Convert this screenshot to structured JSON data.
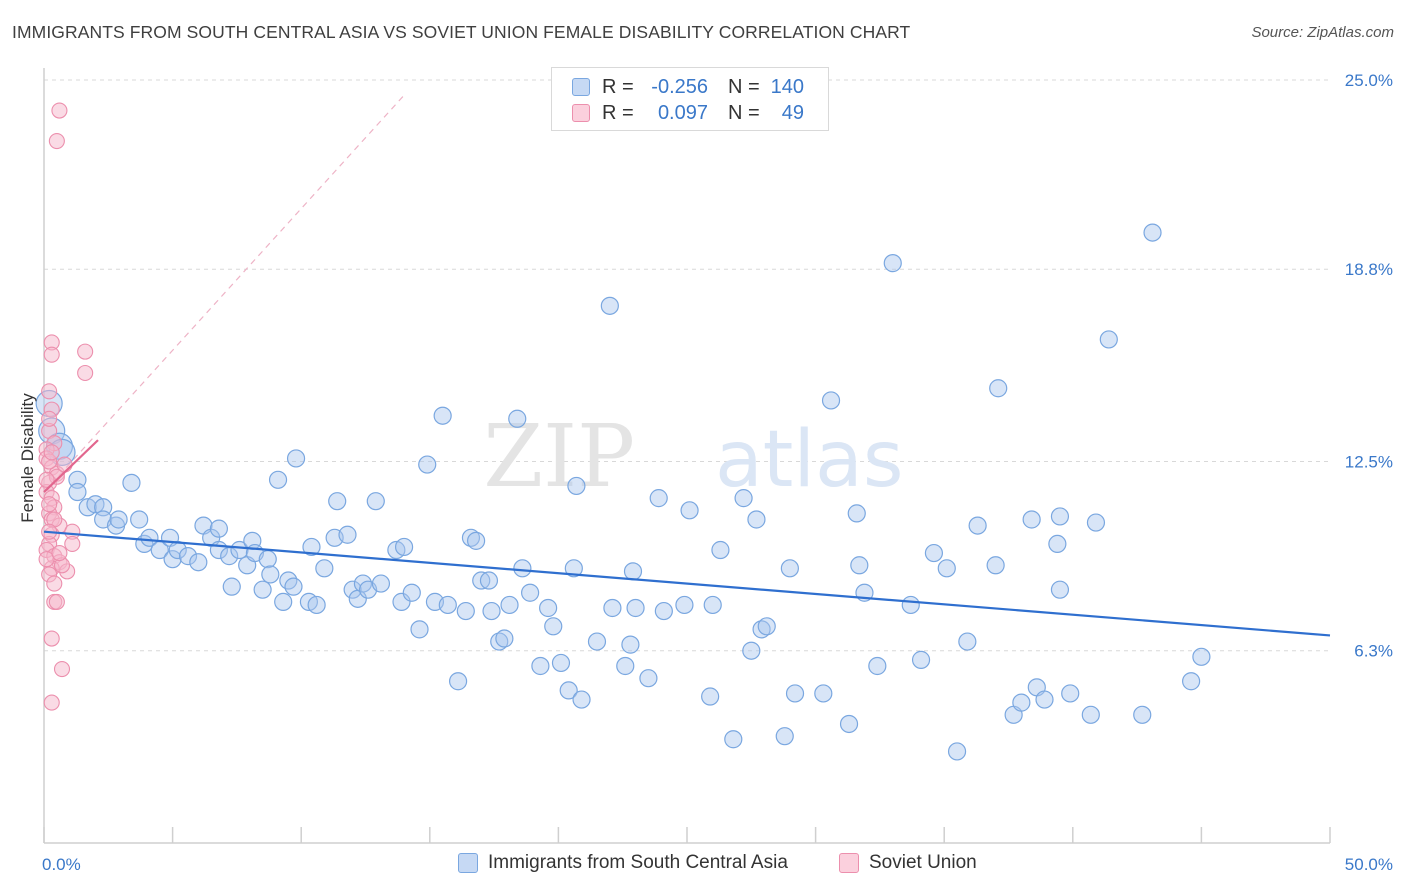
{
  "title": "IMMIGRANTS FROM SOUTH CENTRAL ASIA VS SOVIET UNION FEMALE DISABILITY CORRELATION CHART",
  "source": "Source: ZipAtlas.com",
  "watermark": {
    "zip": "ZIP",
    "atlas": "atlas"
  },
  "legend": {
    "rows": [
      {
        "r_label": "R =",
        "r_value": "-0.256",
        "n_label": "N =",
        "n_value": "140"
      },
      {
        "r_label": "R =",
        "r_value": "0.097",
        "n_label": "N =",
        "n_value": "49"
      }
    ]
  },
  "bottom_legend": [
    "Immigrants from South Central Asia",
    "Soviet Union"
  ],
  "colors": {
    "blue_fill": "#a9c6ee",
    "blue_stroke": "#7aa7e0",
    "blue_line": "#2f6fcf",
    "pink_fill": "#f6b8cb",
    "pink_stroke": "#ec8fad",
    "pink_line": "#e2668e",
    "axis_label": "#3a78c9",
    "grid": "#d8d8d8"
  },
  "chart_data": {
    "type": "scatter",
    "title": "IMMIGRANTS FROM SOUTH CENTRAL ASIA VS SOVIET UNION FEMALE DISABILITY CORRELATION CHART",
    "xlabel": "",
    "ylabel": "Female Disability",
    "xlim": [
      0,
      50
    ],
    "ylim": [
      0,
      25.0
    ],
    "x_tick_labels": [
      "0.0%",
      "50.0%"
    ],
    "y_ticks": [
      6.3,
      12.5,
      18.8,
      25.0
    ],
    "y_tick_labels": [
      "6.3%",
      "12.5%",
      "18.8%",
      "25.0%"
    ],
    "grid": true,
    "legend_position": "top-center",
    "series": [
      {
        "name": "Immigrants from South Central Asia",
        "color": "#a9c6ee",
        "r": -0.256,
        "n": 140,
        "trend": {
          "x": [
            0,
            50
          ],
          "y": [
            10.2,
            6.8
          ]
        },
        "points": [
          [
            0.2,
            14.4
          ],
          [
            0.3,
            13.5
          ],
          [
            0.6,
            13.0
          ],
          [
            0.7,
            12.8
          ],
          [
            1.3,
            11.9
          ],
          [
            1.3,
            11.5
          ],
          [
            1.7,
            11.0
          ],
          [
            2.0,
            11.1
          ],
          [
            2.3,
            11.0
          ],
          [
            2.3,
            10.6
          ],
          [
            2.8,
            10.4
          ],
          [
            2.9,
            10.6
          ],
          [
            3.4,
            11.8
          ],
          [
            3.7,
            10.6
          ],
          [
            3.9,
            9.8
          ],
          [
            4.1,
            10.0
          ],
          [
            4.5,
            9.6
          ],
          [
            4.9,
            10.0
          ],
          [
            5.0,
            9.3
          ],
          [
            5.2,
            9.6
          ],
          [
            5.6,
            9.4
          ],
          [
            6.0,
            9.2
          ],
          [
            6.2,
            10.4
          ],
          [
            6.5,
            10.0
          ],
          [
            6.8,
            10.3
          ],
          [
            6.8,
            9.6
          ],
          [
            7.2,
            9.4
          ],
          [
            7.3,
            8.4
          ],
          [
            7.6,
            9.6
          ],
          [
            7.9,
            9.1
          ],
          [
            8.1,
            9.9
          ],
          [
            8.2,
            9.5
          ],
          [
            8.5,
            8.3
          ],
          [
            8.7,
            9.3
          ],
          [
            8.8,
            8.8
          ],
          [
            9.1,
            11.9
          ],
          [
            9.3,
            7.9
          ],
          [
            9.5,
            8.6
          ],
          [
            9.7,
            8.4
          ],
          [
            9.8,
            12.6
          ],
          [
            10.3,
            7.9
          ],
          [
            10.4,
            9.7
          ],
          [
            10.6,
            7.8
          ],
          [
            10.9,
            9.0
          ],
          [
            11.3,
            10.0
          ],
          [
            11.4,
            11.2
          ],
          [
            11.8,
            10.1
          ],
          [
            12.0,
            8.3
          ],
          [
            12.2,
            8.0
          ],
          [
            12.4,
            8.5
          ],
          [
            12.6,
            8.3
          ],
          [
            12.9,
            11.2
          ],
          [
            13.1,
            8.5
          ],
          [
            13.7,
            9.6
          ],
          [
            13.9,
            7.9
          ],
          [
            14.0,
            9.7
          ],
          [
            14.3,
            8.2
          ],
          [
            14.6,
            7.0
          ],
          [
            14.9,
            12.4
          ],
          [
            15.2,
            7.9
          ],
          [
            15.5,
            14.0
          ],
          [
            15.7,
            7.8
          ],
          [
            16.1,
            5.3
          ],
          [
            16.4,
            7.6
          ],
          [
            16.6,
            10.0
          ],
          [
            16.8,
            9.9
          ],
          [
            17.0,
            8.6
          ],
          [
            17.3,
            8.6
          ],
          [
            17.4,
            7.6
          ],
          [
            17.7,
            6.6
          ],
          [
            17.9,
            6.7
          ],
          [
            18.1,
            7.8
          ],
          [
            18.4,
            13.9
          ],
          [
            18.6,
            9.0
          ],
          [
            18.9,
            8.2
          ],
          [
            19.3,
            5.8
          ],
          [
            19.6,
            7.7
          ],
          [
            19.8,
            7.1
          ],
          [
            20.1,
            5.9
          ],
          [
            20.4,
            5.0
          ],
          [
            20.6,
            9.0
          ],
          [
            20.9,
            4.7
          ],
          [
            20.7,
            11.7
          ],
          [
            21.5,
            6.6
          ],
          [
            22.0,
            17.6
          ],
          [
            22.1,
            7.7
          ],
          [
            22.6,
            5.8
          ],
          [
            22.8,
            6.5
          ],
          [
            22.9,
            8.9
          ],
          [
            23.0,
            7.7
          ],
          [
            23.5,
            5.4
          ],
          [
            23.9,
            11.3
          ],
          [
            24.1,
            7.6
          ],
          [
            24.9,
            7.8
          ],
          [
            25.1,
            10.9
          ],
          [
            25.9,
            4.8
          ],
          [
            26.0,
            7.8
          ],
          [
            26.3,
            9.6
          ],
          [
            26.8,
            3.4
          ],
          [
            27.2,
            11.3
          ],
          [
            27.5,
            6.3
          ],
          [
            27.7,
            10.6
          ],
          [
            27.9,
            7.0
          ],
          [
            28.1,
            7.1
          ],
          [
            28.8,
            3.5
          ],
          [
            29.0,
            9.0
          ],
          [
            29.2,
            4.9
          ],
          [
            30.3,
            4.9
          ],
          [
            30.6,
            14.5
          ],
          [
            31.3,
            3.9
          ],
          [
            31.6,
            10.8
          ],
          [
            31.7,
            9.1
          ],
          [
            31.9,
            8.2
          ],
          [
            32.4,
            5.8
          ],
          [
            33.0,
            19.0
          ],
          [
            34.1,
            6.0
          ],
          [
            35.1,
            9.0
          ],
          [
            35.5,
            3.0
          ],
          [
            35.9,
            6.6
          ],
          [
            37.1,
            14.9
          ],
          [
            37.7,
            4.2
          ],
          [
            38.0,
            4.6
          ],
          [
            38.4,
            10.6
          ],
          [
            38.6,
            5.1
          ],
          [
            38.9,
            4.7
          ],
          [
            39.4,
            9.8
          ],
          [
            39.5,
            10.7
          ],
          [
            39.9,
            4.9
          ],
          [
            40.7,
            4.2
          ],
          [
            43.1,
            20.0
          ],
          [
            39.5,
            8.3
          ],
          [
            41.4,
            16.5
          ],
          [
            40.9,
            10.5
          ],
          [
            42.7,
            4.2
          ],
          [
            37.0,
            9.1
          ],
          [
            36.3,
            10.4
          ],
          [
            34.6,
            9.5
          ],
          [
            33.7,
            7.8
          ],
          [
            44.6,
            5.3
          ],
          [
            45.0,
            6.1
          ]
        ]
      },
      {
        "name": "Soviet Union",
        "color": "#f6b8cb",
        "r": 0.097,
        "n": 49,
        "trend": {
          "x": [
            0,
            2.1
          ],
          "y": [
            11.5,
            13.2
          ]
        },
        "trend_extended": {
          "x": [
            0,
            14.0
          ],
          "y": [
            11.5,
            24.5
          ]
        },
        "points": [
          [
            0.6,
            24.0
          ],
          [
            0.5,
            23.0
          ],
          [
            0.3,
            16.4
          ],
          [
            0.3,
            16.0
          ],
          [
            1.6,
            16.1
          ],
          [
            1.6,
            15.4
          ],
          [
            0.2,
            14.8
          ],
          [
            0.3,
            14.2
          ],
          [
            0.2,
            13.5
          ],
          [
            0.4,
            13.1
          ],
          [
            0.1,
            12.9
          ],
          [
            0.1,
            12.6
          ],
          [
            0.3,
            12.3
          ],
          [
            0.5,
            12.1
          ],
          [
            0.2,
            11.8
          ],
          [
            0.1,
            11.5
          ],
          [
            0.3,
            11.3
          ],
          [
            0.4,
            11.0
          ],
          [
            0.2,
            10.8
          ],
          [
            0.3,
            10.6
          ],
          [
            0.6,
            10.4
          ],
          [
            1.1,
            10.2
          ],
          [
            0.3,
            10.1
          ],
          [
            0.2,
            9.8
          ],
          [
            0.1,
            9.6
          ],
          [
            0.4,
            9.4
          ],
          [
            0.6,
            9.2
          ],
          [
            0.3,
            9.0
          ],
          [
            0.2,
            8.8
          ],
          [
            1.1,
            9.8
          ],
          [
            0.9,
            8.9
          ],
          [
            0.4,
            7.9
          ],
          [
            0.5,
            7.9
          ],
          [
            0.3,
            6.7
          ],
          [
            0.7,
            5.7
          ],
          [
            0.3,
            4.6
          ],
          [
            0.2,
            12.5
          ],
          [
            0.5,
            12.0
          ],
          [
            0.2,
            11.1
          ],
          [
            0.4,
            10.6
          ],
          [
            0.1,
            9.3
          ],
          [
            0.7,
            9.1
          ],
          [
            0.2,
            13.9
          ],
          [
            0.3,
            12.8
          ],
          [
            0.8,
            12.4
          ],
          [
            0.1,
            11.9
          ],
          [
            0.2,
            10.2
          ],
          [
            0.6,
            9.5
          ],
          [
            0.4,
            8.5
          ]
        ]
      }
    ]
  }
}
